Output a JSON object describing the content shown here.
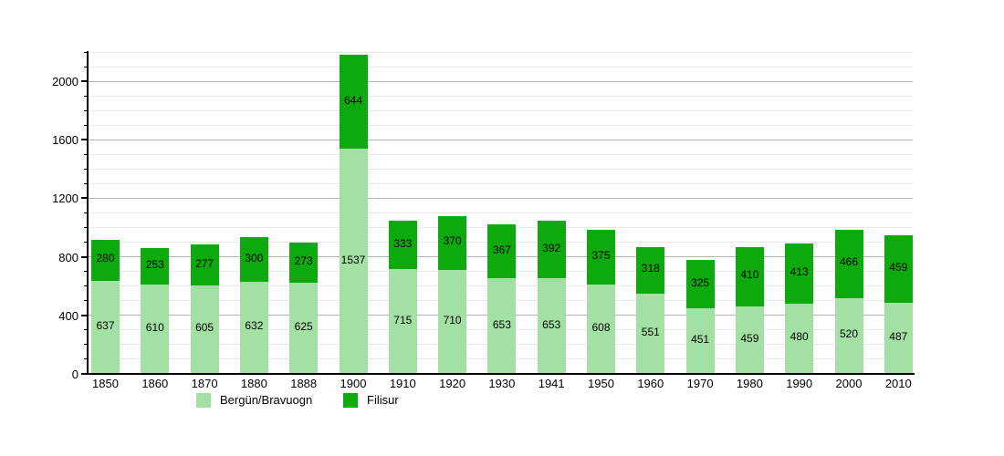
{
  "chart_data": {
    "type": "bar",
    "stacked": true,
    "title": "",
    "xlabel": "",
    "ylabel": "",
    "categories": [
      "1850",
      "1860",
      "1870",
      "1880",
      "1888",
      "1900",
      "1910",
      "1920",
      "1930",
      "1941",
      "1950",
      "1960",
      "1970",
      "1980",
      "1990",
      "2000",
      "2010"
    ],
    "series": [
      {
        "name": "Bergün/Bravuogn",
        "color": "#a3e0a3",
        "values": [
          637,
          610,
          605,
          632,
          625,
          1537,
          715,
          710,
          653,
          653,
          608,
          551,
          451,
          459,
          480,
          520,
          487
        ]
      },
      {
        "name": "Filisur",
        "color": "#0caa0c",
        "values": [
          280,
          253,
          277,
          300,
          273,
          644,
          333,
          370,
          367,
          392,
          375,
          318,
          325,
          410,
          413,
          466,
          459
        ]
      }
    ],
    "ylim": [
      0,
      2200
    ],
    "y_major_tick_step": 400,
    "y_minor_tick_step": 100,
    "y_major_tick_labels": [
      "0",
      "400",
      "800",
      "1200",
      "1600",
      "2000"
    ],
    "grid": true,
    "value_labels": true,
    "legend_position": "bottom"
  },
  "colors": {
    "background": "#ffffff",
    "axis": "#000000",
    "major_grid": "#b3b3b3",
    "minor_grid": "#e8e8e8",
    "text": "#000000"
  }
}
